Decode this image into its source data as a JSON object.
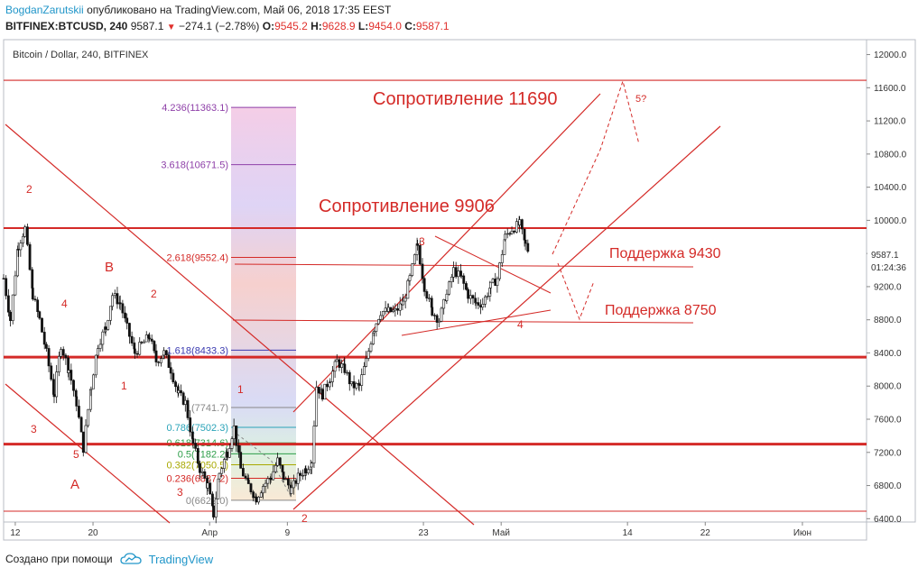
{
  "header": {
    "author": "BogdanZarutskii",
    "published": "опубликовано на TradingView.com, Май 06, 2018 17:35 EEST",
    "symbol": "BITFINEX:BTCUSD, 240",
    "last": "9587.1",
    "change": "−274.1 (−2.78%)",
    "o_label": "O:",
    "o_value": "9545.2",
    "h_label": "H:",
    "h_value": "9628.9",
    "l_label": "L:",
    "l_value": "9454.0",
    "c_label": "C:",
    "c_value": "9587.1"
  },
  "chart_title": "Bitcoin / Dollar, 240, BITFINEX",
  "footer": {
    "created": "Создано при помощи",
    "brand": "TradingView"
  },
  "colors": {
    "accent_red": "#d42a27",
    "candle": "#111111",
    "brand_blue": "#2196c9"
  },
  "annotations": {
    "res1": "Сопротивление 11690",
    "res2": "Сопротивление 9906",
    "sup1": "Поддержка 9430",
    "sup2": "Поддержка 8750",
    "w5q": "5?",
    "w2a": "2",
    "wB": "B",
    "w4a": "4",
    "w2b": "2",
    "w1a": "1",
    "w3a": "3",
    "w5a": "5",
    "wA": "A",
    "w1b": "1",
    "w3b": "3",
    "w2c": "2",
    "w3c": "3",
    "w4b": "4"
  },
  "price_tag": {
    "price": "9587.1",
    "timer": "01:24:36"
  },
  "chart_data": {
    "type": "candlestick",
    "title": "Bitcoin / Dollar, 240, BITFINEX",
    "y_ticks": [
      6400,
      6800,
      7200,
      7600,
      8000,
      8400,
      8800,
      9200,
      9600,
      10000,
      10400,
      10800,
      11200,
      11600,
      12000
    ],
    "y_tick_labels": [
      "6400.0",
      "6800.0",
      "7200.0",
      "7600.0",
      "8000.0",
      "8400.0",
      "8800.0",
      "9200.0",
      "9600.0",
      "10000.0",
      "10400.0",
      "10800.0",
      "11200.0",
      "11600.0",
      "12000.0"
    ],
    "ylim": [
      6360,
      12180
    ],
    "x_ticks": [
      {
        "label": "12",
        "day": 12
      },
      {
        "label": "20",
        "day": 20
      },
      {
        "label": "Апр",
        "day": 32
      },
      {
        "label": "9",
        "day": 40
      },
      {
        "label": "23",
        "day": 54
      },
      {
        "label": "Май",
        "day": 62
      },
      {
        "label": "14",
        "day": 75
      },
      {
        "label": "22",
        "day": 83
      },
      {
        "label": "Июн",
        "day": 93
      }
    ],
    "xlim": [
      10.8,
      99.6
    ],
    "price_path": [
      [
        10.8,
        9300
      ],
      [
        11.5,
        8800
      ],
      [
        12.3,
        9700
      ],
      [
        13.0,
        9900
      ],
      [
        13.8,
        9100
      ],
      [
        14.5,
        8800
      ],
      [
        15.2,
        8400
      ],
      [
        16.0,
        7900
      ],
      [
        16.7,
        8500
      ],
      [
        17.5,
        8200
      ],
      [
        18.3,
        7800
      ],
      [
        19.0,
        7250
      ],
      [
        19.8,
        8000
      ],
      [
        20.5,
        8500
      ],
      [
        21.3,
        8700
      ],
      [
        22.0,
        9100
      ],
      [
        22.8,
        9000
      ],
      [
        23.5,
        8700
      ],
      [
        24.3,
        8400
      ],
      [
        25.0,
        8500
      ],
      [
        25.8,
        8600
      ],
      [
        26.5,
        8300
      ],
      [
        27.3,
        8400
      ],
      [
        28.0,
        8200
      ],
      [
        28.8,
        7900
      ],
      [
        29.5,
        7800
      ],
      [
        30.3,
        7300
      ],
      [
        31.0,
        7000
      ],
      [
        31.8,
        6800
      ],
      [
        32.4,
        6450
      ],
      [
        33.0,
        6950
      ],
      [
        33.8,
        7200
      ],
      [
        34.5,
        7500
      ],
      [
        35.2,
        7000
      ],
      [
        36.0,
        6800
      ],
      [
        36.8,
        6650
      ],
      [
        37.5,
        6800
      ],
      [
        38.3,
        6900
      ],
      [
        39.0,
        7100
      ],
      [
        39.6,
        6900
      ],
      [
        40.4,
        6750
      ],
      [
        41.1,
        6900
      ],
      [
        41.9,
        7000
      ],
      [
        42.5,
        7100
      ],
      [
        43.0,
        8000
      ],
      [
        43.6,
        7900
      ],
      [
        44.4,
        8100
      ],
      [
        45.1,
        8300
      ],
      [
        45.9,
        8200
      ],
      [
        46.6,
        8000
      ],
      [
        47.4,
        8000
      ],
      [
        48.1,
        8300
      ],
      [
        48.9,
        8700
      ],
      [
        49.6,
        8900
      ],
      [
        50.4,
        8900
      ],
      [
        51.1,
        8900
      ],
      [
        51.9,
        9000
      ],
      [
        52.6,
        9300
      ],
      [
        53.4,
        9700
      ],
      [
        54.1,
        9200
      ],
      [
        54.9,
        8900
      ],
      [
        55.6,
        8800
      ],
      [
        56.4,
        9100
      ],
      [
        57.1,
        9400
      ],
      [
        57.9,
        9300
      ],
      [
        58.6,
        9100
      ],
      [
        59.4,
        9000
      ],
      [
        60.1,
        9000
      ],
      [
        60.9,
        9200
      ],
      [
        61.6,
        9300
      ],
      [
        62.4,
        9800
      ],
      [
        63.1,
        9900
      ],
      [
        63.9,
        9950
      ],
      [
        64.5,
        9700
      ],
      [
        65.0,
        9587
      ]
    ],
    "fib_levels": [
      {
        "ratio": "4.236",
        "value": 11363.1,
        "color": "#8e3fa8"
      },
      {
        "ratio": "3.618",
        "value": 10671.5,
        "color": "#8e3fa8"
      },
      {
        "ratio": "2.618",
        "value": 9552.4,
        "color": "#d42a27"
      },
      {
        "ratio": "1.618",
        "value": 8433.3,
        "color": "#3a3ab0"
      },
      {
        "ratio": "1",
        "value": 7741.7,
        "color": "#888888"
      },
      {
        "ratio": "0.786",
        "value": 7502.3,
        "color": "#2aa3b8"
      },
      {
        "ratio": "0.618",
        "value": 7314.6,
        "color": "#2e9e4a"
      },
      {
        "ratio": "0.5",
        "value": 7182.2,
        "color": "#2e9e4a"
      },
      {
        "ratio": "0.382",
        "value": 7050.5,
        "color": "#a8a800"
      },
      {
        "ratio": "0.236",
        "value": 6887.2,
        "color": "#d42a27"
      },
      {
        "ratio": "0",
        "value": 6622.0,
        "color": "#888888"
      }
    ],
    "horizontal_levels": [
      11690,
      9906,
      8350,
      7300,
      6490
    ],
    "last_price": 9587.1
  }
}
